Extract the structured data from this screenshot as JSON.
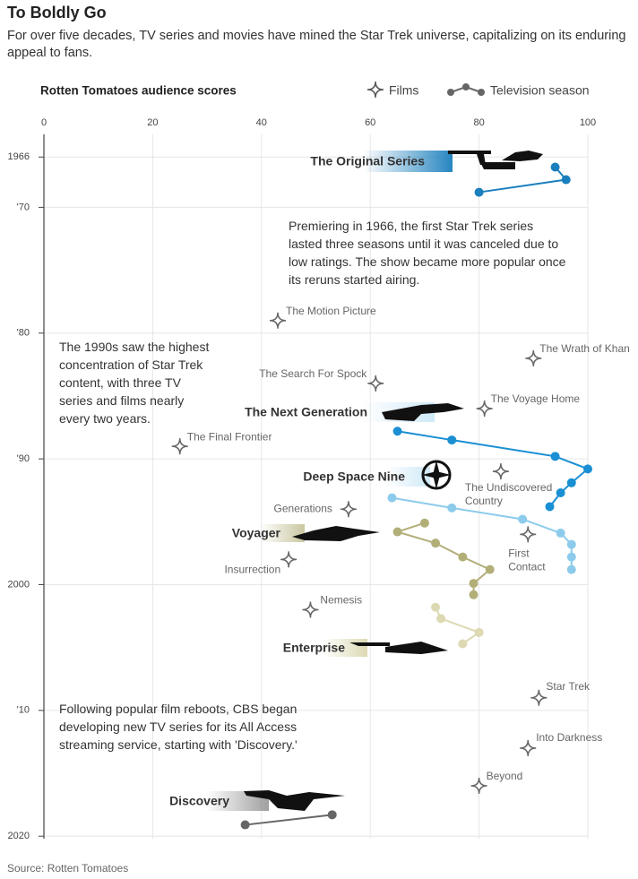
{
  "chart_data": {
    "type": "scatter",
    "title": "To Boldly Go",
    "subtitle": "For over five decades, TV series and movies have mined the Star Trek universe, capitalizing on its enduring appeal to fans.",
    "axis_title": "Rotten Tomatoes audience scores",
    "legend": [
      "Films",
      "Television season"
    ],
    "source": "Source: Rotten Tomatoes",
    "xlim": [
      0,
      100
    ],
    "xticks": [
      0,
      20,
      40,
      60,
      80,
      100
    ],
    "ylim": [
      1964.2,
      2020.2
    ],
    "y_reversed": true,
    "yticks": [
      1966,
      {
        "value": 1970,
        "label": "'70"
      },
      {
        "value": 1980,
        "label": "'80"
      },
      {
        "value": 1990,
        "label": "'90"
      },
      2000,
      {
        "value": 2010,
        "label": "'10"
      },
      2020
    ],
    "grid": true,
    "films": {
      "color": "#666666",
      "names": [
        "The Motion Picture",
        "The Wrath of Khan",
        "The Search For Spock",
        "The Voyage Home",
        "The Final Frontier",
        "The Undiscovered Country",
        "Generations",
        "First Contact",
        "Insurrection",
        "Nemesis",
        "Star Trek",
        "Into Darkness",
        "Beyond"
      ],
      "x": [
        43,
        90,
        61,
        81,
        25,
        84,
        56,
        89,
        45,
        49,
        91,
        89,
        80
      ],
      "y": [
        1979,
        1982,
        1984,
        1986,
        1989,
        1991,
        1994,
        1996,
        1998,
        2002,
        2009,
        2013,
        2016
      ]
    },
    "series": [
      {
        "name": "The Original Series",
        "color": "#1b7fbd",
        "x": [
          94,
          96,
          80
        ],
        "y": [
          1966.8,
          1967.8,
          1968.8
        ]
      },
      {
        "name": "The Next Generation",
        "color": "#1a8fd3",
        "x": [
          65,
          75,
          94,
          100,
          97,
          95,
          93
        ],
        "y": [
          1987.8,
          1988.5,
          1989.8,
          1990.8,
          1991.9,
          1992.7,
          1993.8
        ]
      },
      {
        "name": "Deep Space Nine",
        "color": "#8ccbec",
        "x": [
          64,
          75,
          88,
          95,
          97,
          97,
          97
        ],
        "y": [
          1993.1,
          1993.9,
          1994.8,
          1995.9,
          1996.8,
          1997.8,
          1998.8
        ]
      },
      {
        "name": "Voyager",
        "color": "#b2ae78",
        "x": [
          70,
          65,
          72,
          77,
          82,
          79,
          79
        ],
        "y": [
          1995.1,
          1995.8,
          1996.7,
          1997.8,
          1998.8,
          1999.9,
          2000.8
        ]
      },
      {
        "name": "Enterprise",
        "color": "#dcd9b3",
        "x": [
          72,
          73,
          80,
          77
        ],
        "y": [
          2001.8,
          2002.7,
          2003.8,
          2004.7
        ]
      },
      {
        "name": "Discovery",
        "color": "#666666",
        "x": [
          53,
          37
        ],
        "y": [
          2018.3,
          2019.1
        ]
      }
    ],
    "annotations": [
      [
        "Premiering in 1966, the first Star Trek series",
        "lasted three seasons until it was canceled due to",
        "low ratings. The show became more popular once",
        "its reruns started airing."
      ],
      [
        "The 1990s saw the highest",
        "concentration of Star Trek",
        "content, with three TV",
        "series and films nearly",
        "every two years."
      ],
      [
        "Following popular film reboots, CBS began",
        "developing new TV series for its All Access",
        "streaming service, starting with 'Discovery.'"
      ]
    ]
  }
}
